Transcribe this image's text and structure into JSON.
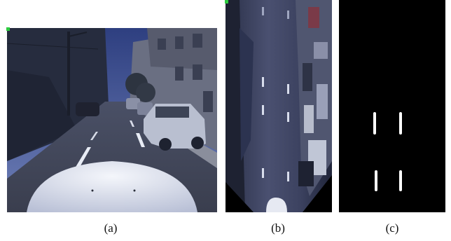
{
  "figure": {
    "panels": [
      {
        "id": "a",
        "caption": "(a)",
        "content": "camera-view"
      },
      {
        "id": "b",
        "caption": "(b)",
        "content": "birds-eye-view"
      },
      {
        "id": "c",
        "caption": "(c)",
        "content": "lane-mask"
      }
    ],
    "colors": {
      "marker": "#2ecc40",
      "mask_background": "#000000",
      "lane_marking": "#ffffff"
    }
  }
}
